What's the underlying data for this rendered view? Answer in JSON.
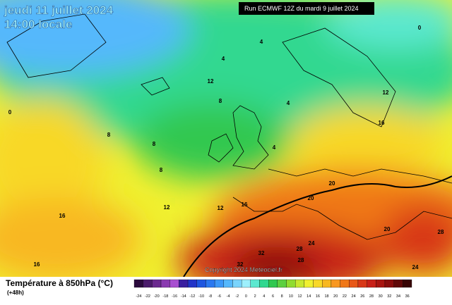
{
  "header": {
    "date": "jeudi 11 juillet 2024",
    "time": "14:00 locale",
    "run": "Run ECMWF 12Z du mardi 9 juillet 2024"
  },
  "copyright": "Copyright 2024 Meteociel.fr",
  "legend": {
    "title": "Température à 850hPa (°C)",
    "subtitle": "(+48h)",
    "scale": [
      {
        "label": "-24",
        "color": "#2b0a3d"
      },
      {
        "label": "-22",
        "color": "#4b1b6b"
      },
      {
        "label": "-20",
        "color": "#6b2a8f"
      },
      {
        "label": "-18",
        "color": "#8a3ab0"
      },
      {
        "label": "-16",
        "color": "#a84fd0"
      },
      {
        "label": "-14",
        "color": "#3a1fa0"
      },
      {
        "label": "-12",
        "color": "#2234c8"
      },
      {
        "label": "-10",
        "color": "#1e56e0"
      },
      {
        "label": "-8",
        "color": "#2a78f0"
      },
      {
        "label": "-6",
        "color": "#3c98f8"
      },
      {
        "label": "-4",
        "color": "#55b8fc"
      },
      {
        "label": "-2",
        "color": "#7ad4fc"
      },
      {
        "label": "0",
        "color": "#9ef0fc"
      },
      {
        "label": "2",
        "color": "#5ce8d0"
      },
      {
        "label": "4",
        "color": "#30d890"
      },
      {
        "label": "6",
        "color": "#30c850"
      },
      {
        "label": "8",
        "color": "#5cd040"
      },
      {
        "label": "10",
        "color": "#90dc30"
      },
      {
        "label": "12",
        "color": "#c8e830"
      },
      {
        "label": "14",
        "color": "#f0f030"
      },
      {
        "label": "16",
        "color": "#f8d828"
      },
      {
        "label": "18",
        "color": "#f8b820"
      },
      {
        "label": "20",
        "color": "#f89820"
      },
      {
        "label": "22",
        "color": "#f07818"
      },
      {
        "label": "24",
        "color": "#e85818"
      },
      {
        "label": "26",
        "color": "#d83818"
      },
      {
        "label": "28",
        "color": "#c82018"
      },
      {
        "label": "30",
        "color": "#a81410"
      },
      {
        "label": "32",
        "color": "#880c0c"
      },
      {
        "label": "34",
        "color": "#600808"
      },
      {
        "label": "36",
        "color": "#380404"
      }
    ]
  },
  "map_labels": [
    "0",
    "12",
    "12",
    "8",
    "8",
    "8",
    "8",
    "4",
    "4",
    "4",
    "4",
    "16",
    "16",
    "16",
    "16",
    "12",
    "12",
    "20",
    "20",
    "20",
    "24",
    "24",
    "28",
    "28",
    "28",
    "32",
    "32",
    "0"
  ]
}
